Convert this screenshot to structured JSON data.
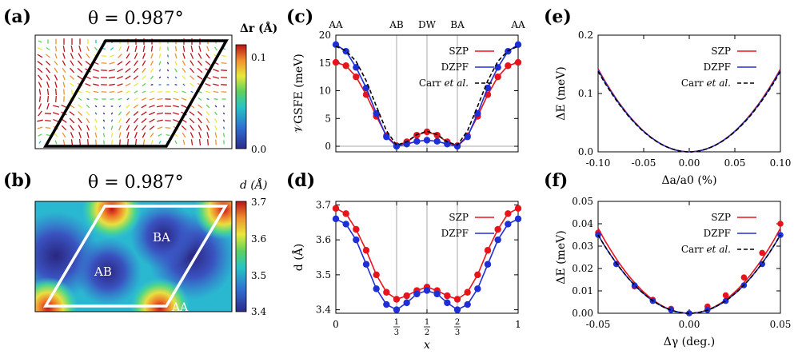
{
  "panels": {
    "a": {
      "label": "(a)",
      "title": "θ = 0.987°",
      "cbar_label": "Δr (Å)",
      "cbar_ticks": [
        "0.1",
        "0.0"
      ]
    },
    "b": {
      "label": "(b)",
      "title": "θ = 0.987°",
      "cbar_label": "d (Å)",
      "cbar_ticks": [
        "3.7",
        "3.6",
        "3.5",
        "3.4"
      ],
      "region_labels": {
        "ab": "AB",
        "ba": "BA",
        "aa": "AA"
      }
    },
    "c": {
      "label": "(c)"
    },
    "d": {
      "label": "(d)"
    },
    "e": {
      "label": "(e)"
    },
    "f": {
      "label": "(f)"
    }
  },
  "colors": {
    "szp": "#e8141c",
    "dzpf": "#1f2fd6",
    "carr": "#000000",
    "gray_line": "#aaaaaa"
  },
  "chart_data": [
    {
      "id": "c",
      "type": "line",
      "ylabel": "V_GSFE (meV)",
      "ylim": [
        -1,
        20
      ],
      "xlim": [
        0,
        1
      ],
      "yticks": [
        0,
        5,
        10,
        15,
        20
      ],
      "top_labels": [
        {
          "x": 0,
          "t": "AA"
        },
        {
          "x": 0.3333,
          "t": "AB"
        },
        {
          "x": 0.5,
          "t": "DW"
        },
        {
          "x": 0.6667,
          "t": "BA"
        },
        {
          "x": 1,
          "t": "AA"
        }
      ],
      "vlines": [
        0.3333,
        0.5,
        0.6667
      ],
      "hline": 0,
      "x": [
        0,
        0.0556,
        0.1111,
        0.1667,
        0.2222,
        0.2778,
        0.3333,
        0.3889,
        0.4444,
        0.5,
        0.5556,
        0.6111,
        0.6667,
        0.7222,
        0.7778,
        0.8333,
        0.8889,
        0.9444,
        1
      ],
      "series": [
        {
          "name": "SZP",
          "key": "szp",
          "markers": true,
          "values": [
            15.1,
            14.5,
            12.5,
            9.3,
            5.4,
            1.9,
            0.1,
            0.8,
            2.0,
            2.6,
            2.0,
            0.8,
            0.1,
            1.9,
            5.4,
            9.3,
            12.5,
            14.5,
            15.1
          ]
        },
        {
          "name": "DZPF",
          "key": "dzpf",
          "markers": true,
          "values": [
            18.3,
            17.1,
            14.2,
            10.5,
            5.9,
            1.7,
            0.0,
            0.4,
            0.9,
            1.1,
            0.9,
            0.4,
            0.0,
            1.7,
            5.9,
            10.5,
            14.2,
            17.1,
            18.3
          ]
        },
        {
          "name": "Carr et al.",
          "key": "carr",
          "markers": false,
          "dashed": true,
          "values": [
            18.0,
            17.2,
            15.3,
            11.8,
            7.2,
            2.8,
            0.2,
            0.8,
            2.1,
            2.7,
            2.1,
            0.8,
            0.2,
            2.8,
            7.2,
            11.8,
            15.3,
            17.2,
            18.0
          ]
        }
      ]
    },
    {
      "id": "d",
      "type": "line",
      "xlabel": "x",
      "ylabel": "d (Å)",
      "ylim": [
        3.39,
        3.71
      ],
      "xlim": [
        0,
        1
      ],
      "yticks": [
        3.4,
        3.5,
        3.6,
        3.7
      ],
      "xticks": [
        {
          "x": 0,
          "t": "0"
        },
        {
          "x": 0.3333,
          "t": "1/3"
        },
        {
          "x": 0.5,
          "t": "1/2"
        },
        {
          "x": 0.6667,
          "t": "2/3"
        },
        {
          "x": 1,
          "t": "1"
        }
      ],
      "vlines": [
        0.3333,
        0.5,
        0.6667
      ],
      "x": [
        0,
        0.0556,
        0.1111,
        0.1667,
        0.2222,
        0.2778,
        0.3333,
        0.3889,
        0.4444,
        0.5,
        0.5556,
        0.6111,
        0.6667,
        0.7222,
        0.7778,
        0.8333,
        0.8889,
        0.9444,
        1
      ],
      "series": [
        {
          "name": "SZP",
          "key": "szp",
          "markers": true,
          "values": [
            3.69,
            3.675,
            3.63,
            3.57,
            3.5,
            3.45,
            3.43,
            3.44,
            3.455,
            3.465,
            3.455,
            3.44,
            3.43,
            3.45,
            3.5,
            3.57,
            3.63,
            3.675,
            3.69
          ]
        },
        {
          "name": "DZPF",
          "key": "dzpf",
          "markers": true,
          "values": [
            3.66,
            3.645,
            3.6,
            3.53,
            3.46,
            3.415,
            3.4,
            3.42,
            3.445,
            3.455,
            3.445,
            3.42,
            3.4,
            3.415,
            3.46,
            3.53,
            3.6,
            3.645,
            3.66
          ]
        }
      ]
    },
    {
      "id": "e",
      "type": "line",
      "xlabel": "Δa/a0 (%)",
      "ylabel": "ΔE (meV)",
      "xlim": [
        -0.1,
        0.1
      ],
      "ylim": [
        0,
        0.2
      ],
      "xticks": [
        -0.1,
        -0.05,
        0,
        0.05,
        0.1
      ],
      "xtick_labels": [
        "-0.10",
        "-0.05",
        "0.00",
        "0.05",
        "0.10"
      ],
      "yticks": [
        0,
        0.1,
        0.2
      ],
      "ytick_labels": [
        "0.0",
        "0.1",
        "0.2"
      ],
      "series": [
        {
          "name": "SZP",
          "key": "szp",
          "curvature": 14.2
        },
        {
          "name": "DZPF",
          "key": "dzpf",
          "curvature": 14.0
        },
        {
          "name": "Carr et al.",
          "key": "carr",
          "curvature": 13.8,
          "dashed": true
        }
      ]
    },
    {
      "id": "f",
      "type": "line",
      "xlabel": "Δγ (deg.)",
      "ylabel": "ΔE (meV)",
      "xlim": [
        -0.05,
        0.05
      ],
      "ylim": [
        0,
        0.05
      ],
      "xticks": [
        -0.05,
        0,
        0.05
      ],
      "xtick_labels": [
        "-0.05",
        "0.00",
        "0.05"
      ],
      "yticks": [
        0,
        0.01,
        0.02,
        0.03,
        0.04,
        0.05
      ],
      "ytick_labels": [
        "0.00",
        "0.01",
        "0.02",
        "0.03",
        "0.04",
        "0.05"
      ],
      "series": [
        {
          "name": "SZP",
          "key": "szp",
          "curvature": 15.2,
          "points_x": [
            -0.05,
            -0.04,
            -0.03,
            -0.02,
            -0.01,
            0,
            0.01,
            0.02,
            0.03,
            0.04,
            0.05
          ],
          "points_y": [
            0.036,
            0.022,
            0.012,
            0.006,
            0.002,
            0.0,
            0.003,
            0.008,
            0.016,
            0.027,
            0.04
          ]
        },
        {
          "name": "DZPF",
          "key": "dzpf",
          "curvature": 14.0,
          "points_x": [
            -0.05,
            -0.04,
            -0.03,
            -0.02,
            -0.01,
            0,
            0.01,
            0.02,
            0.03,
            0.04,
            0.05
          ],
          "points_y": [
            0.035,
            0.022,
            0.0125,
            0.0055,
            0.0015,
            0.0,
            0.0015,
            0.0055,
            0.0125,
            0.022,
            0.035
          ]
        },
        {
          "name": "Carr et al.",
          "key": "carr",
          "curvature": 14.0,
          "dashed": true
        }
      ]
    }
  ]
}
